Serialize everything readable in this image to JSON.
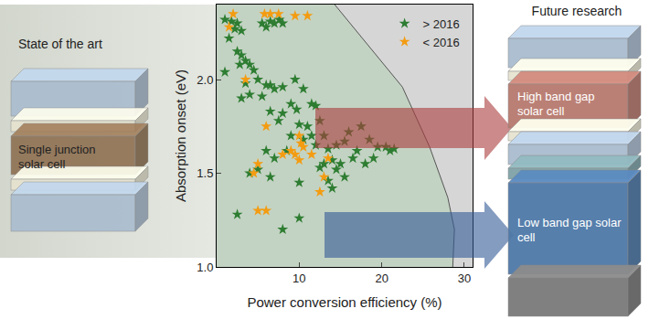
{
  "chart_data": {
    "type": "scatter",
    "x_label": "Power conversion efficiency (%)",
    "y_label": "Absorption onset (eV)",
    "xlim": [
      0,
      31
    ],
    "xticks": [
      10,
      20,
      30
    ],
    "ylim": [
      1.0,
      2.4
    ],
    "yticks": [
      {
        "value": 1.0,
        "label": "1.0"
      },
      {
        "value": 1.5,
        "label": "1.5"
      },
      {
        "value": 2.0,
        "label": "2.0"
      }
    ],
    "grid": false,
    "legend": "top right",
    "series": [
      {
        "name": "> 2016",
        "color": "#2e7d32",
        "marker": "star",
        "x": [
          1.0,
          1.8,
          2.5,
          5.5,
          6.0,
          6.5,
          7.0,
          7.6,
          8.0,
          2.2,
          3.0,
          1.5,
          1.0,
          2.5,
          3.0,
          3.5,
          2.8,
          4.0,
          4.5,
          5.0,
          6.0,
          6.5,
          7.0,
          3.5,
          4.0,
          3.0,
          5.5,
          8.0,
          9.5,
          10.5,
          12.0,
          11.5,
          9.0,
          9.7,
          8.0,
          6.5,
          7.5,
          10.0,
          11.0,
          12.5,
          13.0,
          11.5,
          10.5,
          12.0,
          13.5,
          14.5,
          15.5,
          16.0,
          17.5,
          18.5,
          17.0,
          19.0,
          16.5,
          14.0,
          15.0,
          13.0,
          12.5,
          14.5,
          15.5,
          13.5,
          20.5,
          21.0,
          21.5,
          9.0,
          8.5,
          7.0,
          6.0,
          5.0,
          6.5,
          4.0,
          10.0,
          2.5,
          10.0,
          8.0,
          14.0,
          18.0,
          19.5
        ],
        "values": [
          2.32,
          2.31,
          2.3,
          2.3,
          2.28,
          2.31,
          2.3,
          2.32,
          2.3,
          2.27,
          2.26,
          2.22,
          2.04,
          2.15,
          2.13,
          2.1,
          2.08,
          2.08,
          2.05,
          2.0,
          1.97,
          1.97,
          1.95,
          1.98,
          1.92,
          1.9,
          1.91,
          1.96,
          2.0,
          1.95,
          1.86,
          1.87,
          1.87,
          1.84,
          1.82,
          1.83,
          1.78,
          1.76,
          1.75,
          1.78,
          1.7,
          1.7,
          1.68,
          1.65,
          1.63,
          1.65,
          1.67,
          1.72,
          1.75,
          1.68,
          1.62,
          1.58,
          1.58,
          1.57,
          1.55,
          1.55,
          1.53,
          1.52,
          1.48,
          1.46,
          1.64,
          1.62,
          1.63,
          1.7,
          1.62,
          1.58,
          1.62,
          1.52,
          1.48,
          1.5,
          1.45,
          1.28,
          1.26,
          1.2,
          1.42,
          1.55,
          1.64
        ]
      },
      {
        "name": "< 2016",
        "color": "#f39c12",
        "marker": "star",
        "x": [
          2.0,
          1.5,
          5.8,
          6.5,
          7.5,
          9.5,
          11.0,
          6.0,
          10.0,
          10.2,
          10.5,
          11.5,
          9.0,
          10.0,
          8.0,
          13.5,
          13.0,
          12.5,
          5.0,
          4.5,
          5.0,
          6.0,
          3.5,
          9.5
        ],
        "values": [
          2.35,
          2.28,
          2.35,
          2.35,
          2.35,
          2.34,
          2.34,
          1.75,
          1.7,
          1.66,
          1.64,
          1.6,
          1.62,
          1.57,
          1.6,
          1.58,
          1.48,
          1.4,
          1.55,
          1.5,
          1.3,
          1.3,
          2.0,
          1.6
        ]
      },
      {
        "type": "area",
        "color": "#d6d6d6",
        "x": [
          14.3,
          18.0,
          22.5,
          25.8,
          28.0,
          28.8,
          28.6
        ],
        "values": [
          2.4,
          2.2,
          1.96,
          1.64,
          1.37,
          1.2,
          1.0
        ]
      }
    ]
  },
  "diagram": {
    "left": {
      "title": "State of the art",
      "layer": "Single junction solar cell"
    },
    "right": {
      "title": "Future research",
      "layers": [
        "High band gap solar cell",
        "Low band gap solar cell"
      ]
    }
  }
}
